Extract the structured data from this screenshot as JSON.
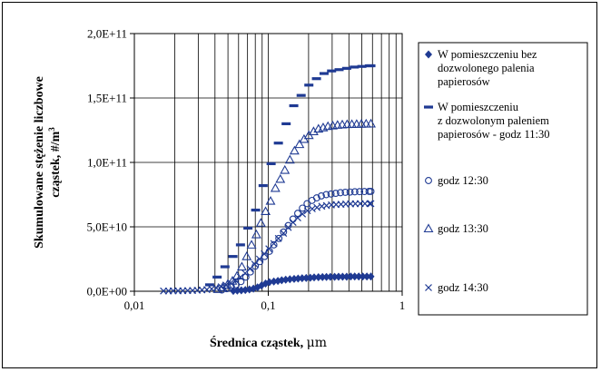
{
  "chart_data": {
    "type": "scatter",
    "xscale": "log",
    "xlim": [
      0.01,
      1
    ],
    "ylim": [
      0,
      200000000000
    ],
    "grid": {
      "x": "major+minor",
      "y": "major"
    },
    "legend_position": "right",
    "xlabel": "Średnica cząstek, ",
    "xlabel_unit": "μm",
    "ylabel_line1": "Skumulowane stężenie liczbowe",
    "ylabel_line2": "cząstek, #/m",
    "ylabel_sup": "3",
    "x_ticks": [
      {
        "value": 0.01,
        "label": "0,01"
      },
      {
        "value": 0.1,
        "label": "0,1"
      },
      {
        "value": 1,
        "label": "1"
      }
    ],
    "y_ticks": [
      {
        "value": 0,
        "label": "0,0E+00"
      },
      {
        "value": 50000000000,
        "label": "5,0E+10"
      },
      {
        "value": 100000000000,
        "label": "1,0E+11"
      },
      {
        "value": 150000000000,
        "label": "1,5E+11"
      },
      {
        "value": 200000000000,
        "label": "2,0E+11"
      }
    ],
    "series": [
      {
        "name_lines": [
          "W pomieszczeniu bez",
          "dozwolonego palenia",
          "papierosów"
        ],
        "marker": "diamond",
        "color": "#1f3a93",
        "points": [
          [
            0.0548,
            300000000.0
          ],
          [
            0.0587,
            500000000.0
          ],
          [
            0.0629,
            700000000.0
          ],
          [
            0.0674,
            1000000000.0
          ],
          [
            0.0723,
            1400000000.0
          ],
          [
            0.0775,
            2000000000.0
          ],
          [
            0.0831,
            3000000000.0
          ],
          [
            0.0891,
            4500000000.0
          ],
          [
            0.0955,
            6000000000.0
          ],
          [
            0.102,
            7000000000.0
          ],
          [
            0.11,
            7600000000.0
          ],
          [
            0.118,
            8000000000.0
          ],
          [
            0.126,
            8500000000.0
          ],
          [
            0.135,
            9000000000.0
          ],
          [
            0.145,
            9300000000.0
          ],
          [
            0.156,
            9600000000.0
          ],
          [
            0.167,
            9900000000.0
          ],
          [
            0.179,
            10100000000.0
          ],
          [
            0.192,
            10300000000.0
          ],
          [
            0.206,
            10500000000.0
          ],
          [
            0.22,
            10700000000.0
          ],
          [
            0.237,
            10900000000.0
          ],
          [
            0.254,
            11000000000.0
          ],
          [
            0.272,
            11100000000.0
          ],
          [
            0.291,
            11200000000.0
          ],
          [
            0.313,
            11200000000.0
          ],
          [
            0.335,
            11300000000.0
          ],
          [
            0.359,
            11300000000.0
          ],
          [
            0.385,
            11300000000.0
          ],
          [
            0.413,
            11400000000.0
          ],
          [
            0.442,
            11400000000.0
          ],
          [
            0.474,
            11400000000.0
          ],
          [
            0.508,
            11400000000.0
          ],
          [
            0.545,
            11400000000.0
          ],
          [
            0.584,
            11400000000.0
          ]
        ]
      },
      {
        "name_lines": [
          "W pomieszczeniu",
          "z dozwolonym paleniem",
          "papierosów - godz 11:30"
        ],
        "marker": "dash",
        "color": "#1f3a93",
        "points": [
          [
            0.0365,
            5000000000.0
          ],
          [
            0.0415,
            11000000000.0
          ],
          [
            0.0475,
            19000000000.0
          ],
          [
            0.0545,
            27000000000.0
          ],
          [
            0.062,
            36000000000.0
          ],
          [
            0.0705,
            49000000000.0
          ],
          [
            0.0805,
            63000000000.0
          ],
          [
            0.0915,
            82000000000.0
          ],
          [
            0.105,
            99000000000.0
          ],
          [
            0.119,
            115000000000.0
          ],
          [
            0.136,
            130000000000.0
          ],
          [
            0.155,
            144000000000.0
          ],
          [
            0.176,
            152000000000.0
          ],
          [
            0.201,
            160000000000.0
          ],
          [
            0.229,
            165000000000.0
          ],
          [
            0.261,
            169000000000.0
          ],
          [
            0.297,
            171000000000.0
          ],
          [
            0.338,
            172000000000.0
          ],
          [
            0.385,
            173000000000.0
          ],
          [
            0.439,
            174000000000.0
          ],
          [
            0.5,
            174500000000.0
          ],
          [
            0.569,
            175000000000.0
          ],
          [
            0.584,
            175000000000.0
          ]
        ]
      },
      {
        "name_lines": [
          "godz 12:30"
        ],
        "marker": "circle",
        "color": "#1f3a93",
        "points": [
          [
            0.045,
            1000000000.0
          ],
          [
            0.049,
            2000000000.0
          ],
          [
            0.053,
            3500000000.0
          ],
          [
            0.0575,
            5000000000.0
          ],
          [
            0.0625,
            7500000000.0
          ],
          [
            0.068,
            11000000000.0
          ],
          [
            0.0735,
            15000000000.0
          ],
          [
            0.08,
            19500000000.0
          ],
          [
            0.0865,
            23000000000.0
          ],
          [
            0.094,
            27000000000.0
          ],
          [
            0.102,
            31000000000.0
          ],
          [
            0.11,
            36000000000.0
          ],
          [
            0.12,
            41000000000.0
          ],
          [
            0.13,
            46000000000.0
          ],
          [
            0.141,
            51000000000.0
          ],
          [
            0.153,
            56000000000.0
          ],
          [
            0.166,
            60500000000.0
          ],
          [
            0.18,
            64500000000.0
          ],
          [
            0.195,
            68000000000.0
          ],
          [
            0.212,
            70500000000.0
          ],
          [
            0.23,
            72500000000.0
          ],
          [
            0.249,
            74000000000.0
          ],
          [
            0.271,
            75000000000.0
          ],
          [
            0.294,
            75500000000.0
          ],
          [
            0.319,
            76000000000.0
          ],
          [
            0.346,
            76500000000.0
          ],
          [
            0.376,
            76800000000.0
          ],
          [
            0.408,
            77000000000.0
          ],
          [
            0.443,
            77200000000.0
          ],
          [
            0.481,
            77300000000.0
          ],
          [
            0.522,
            77400000000.0
          ],
          [
            0.566,
            77500000000.0
          ],
          [
            0.584,
            77500000000.0
          ]
        ]
      },
      {
        "name_lines": [
          "godz 13:30"
        ],
        "marker": "triangle",
        "color": "#1f3a93",
        "points": [
          [
            0.042,
            1500000000.0
          ],
          [
            0.0455,
            3000000000.0
          ],
          [
            0.0495,
            5000000000.0
          ],
          [
            0.054,
            8000000000.0
          ],
          [
            0.0585,
            12000000000.0
          ],
          [
            0.0635,
            19000000000.0
          ],
          [
            0.069,
            27000000000.0
          ],
          [
            0.075,
            36000000000.0
          ],
          [
            0.0815,
            44000000000.0
          ],
          [
            0.088,
            53000000000.0
          ],
          [
            0.0955,
            62000000000.0
          ],
          [
            0.104,
            70000000000.0
          ],
          [
            0.113,
            80000000000.0
          ],
          [
            0.123,
            87000000000.0
          ],
          [
            0.133,
            94000000000.0
          ],
          [
            0.145,
            102000000000.0
          ],
          [
            0.157,
            109000000000.0
          ],
          [
            0.171,
            114000000000.0
          ],
          [
            0.185,
            118000000000.0
          ],
          [
            0.201,
            121000000000.0
          ],
          [
            0.218,
            124000000000.0
          ],
          [
            0.237,
            126000000000.0
          ],
          [
            0.257,
            127000000000.0
          ],
          [
            0.279,
            128000000000.0
          ],
          [
            0.303,
            128500000000.0
          ],
          [
            0.329,
            129000000000.0
          ],
          [
            0.357,
            129300000000.0
          ],
          [
            0.388,
            129500000000.0
          ],
          [
            0.421,
            129600000000.0
          ],
          [
            0.457,
            129700000000.0
          ],
          [
            0.496,
            129800000000.0
          ],
          [
            0.538,
            129900000000.0
          ],
          [
            0.584,
            130000000000.0
          ]
        ]
      },
      {
        "name_lines": [
          "godz 14:30"
        ],
        "marker": "x",
        "color": "#1f3a93",
        "points": [
          [
            0.0165,
            200000000.0
          ],
          [
            0.018,
            200000000.0
          ],
          [
            0.0195,
            300000000.0
          ],
          [
            0.0212,
            300000000.0
          ],
          [
            0.023,
            400000000.0
          ],
          [
            0.025,
            500000000.0
          ],
          [
            0.0272,
            600000000.0
          ],
          [
            0.0295,
            800000000.0
          ],
          [
            0.032,
            1000000000.0
          ],
          [
            0.0348,
            1300000000.0
          ],
          [
            0.0378,
            1800000000.0
          ],
          [
            0.041,
            2500000000.0
          ],
          [
            0.0445,
            3500000000.0
          ],
          [
            0.0483,
            4800000000.0
          ],
          [
            0.0525,
            6500000000.0
          ],
          [
            0.057,
            8500000000.0
          ],
          [
            0.0619,
            11000000000.0
          ],
          [
            0.0672,
            14000000000.0
          ],
          [
            0.073,
            17500000000.0
          ],
          [
            0.0792,
            21000000000.0
          ],
          [
            0.086,
            25000000000.0
          ],
          [
            0.0934,
            29000000000.0
          ],
          [
            0.101,
            33000000000.0
          ],
          [
            0.11,
            37000000000.0
          ],
          [
            0.119,
            41000000000.0
          ],
          [
            0.13,
            45000000000.0
          ],
          [
            0.141,
            49500000000.0
          ],
          [
            0.153,
            53500000000.0
          ],
          [
            0.166,
            57000000000.0
          ],
          [
            0.18,
            60000000000.0
          ],
          [
            0.196,
            62500000000.0
          ],
          [
            0.213,
            64000000000.0
          ],
          [
            0.231,
            65000000000.0
          ],
          [
            0.251,
            66000000000.0
          ],
          [
            0.272,
            66500000000.0
          ],
          [
            0.296,
            67000000000.0
          ],
          [
            0.321,
            67300000000.0
          ],
          [
            0.349,
            67500000000.0
          ],
          [
            0.379,
            67700000000.0
          ],
          [
            0.412,
            67800000000.0
          ],
          [
            0.447,
            67900000000.0
          ],
          [
            0.486,
            68000000000.0
          ],
          [
            0.527,
            68000000000.0
          ],
          [
            0.573,
            68000000000.0
          ],
          [
            0.584,
            68000000000.0
          ]
        ]
      }
    ]
  }
}
